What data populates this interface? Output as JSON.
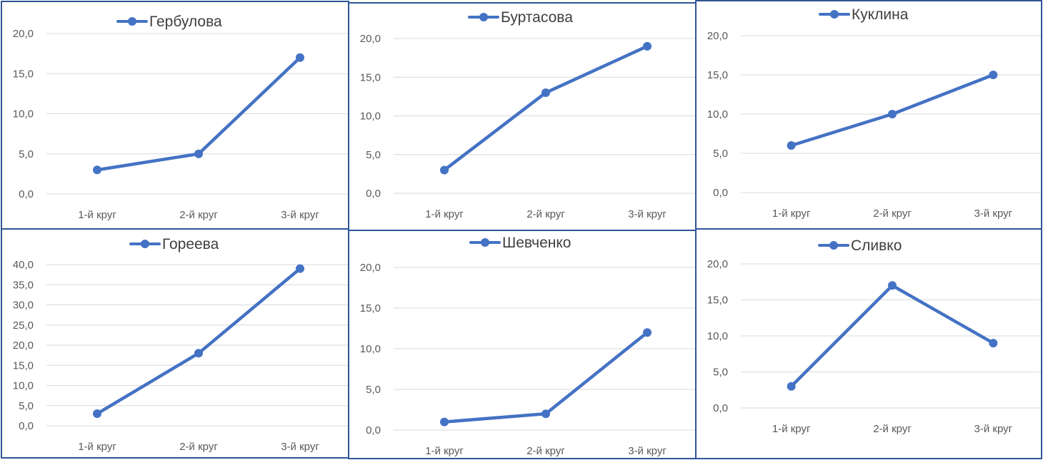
{
  "colors": {
    "series": "#4472C4",
    "grid": "#D9D9D9",
    "border": "#2F5597",
    "tick_text": "#595959"
  },
  "chart_data": [
    {
      "type": "line",
      "title": "Гербулова",
      "legend": "top",
      "categories": [
        "1-й круг",
        "2-й круг",
        "3-й круг"
      ],
      "series": [
        {
          "name": "Гербулова",
          "values": [
            3,
            5,
            17
          ]
        }
      ],
      "ylim": [
        0,
        20
      ],
      "ytick_step": 5,
      "ytick_labels": [
        "0,0",
        "5,0",
        "10,0",
        "15,0",
        "20,0"
      ]
    },
    {
      "type": "line",
      "title": "Буртасова",
      "legend": "top",
      "categories": [
        "1-й круг",
        "2-й круг",
        "3-й круг"
      ],
      "series": [
        {
          "name": "Буртасова",
          "values": [
            3,
            13,
            19
          ]
        }
      ],
      "ylim": [
        0,
        20
      ],
      "ytick_step": 5,
      "ytick_labels": [
        "0,0",
        "5,0",
        "10,0",
        "15,0",
        "20,0"
      ]
    },
    {
      "type": "line",
      "title": "Куклина",
      "legend": "top",
      "categories": [
        "1-й круг",
        "2-й круг",
        "3-й круг"
      ],
      "series": [
        {
          "name": "Куклина",
          "values": [
            6,
            10,
            15
          ]
        }
      ],
      "ylim": [
        0,
        20
      ],
      "ytick_step": 5,
      "ytick_labels": [
        "0,0",
        "5,0",
        "10,0",
        "15,0",
        "20,0"
      ]
    },
    {
      "type": "line",
      "title": "Гореева",
      "legend": "top",
      "categories": [
        "1-й круг",
        "2-й круг",
        "3-й круг"
      ],
      "series": [
        {
          "name": "Гореева",
          "values": [
            3,
            18,
            39
          ]
        }
      ],
      "ylim": [
        0,
        40
      ],
      "ytick_step": 5,
      "ytick_labels": [
        "0,0",
        "5,0",
        "10,0",
        "15,0",
        "20,0",
        "25,0",
        "30,0",
        "35,0",
        "40,0"
      ]
    },
    {
      "type": "line",
      "title": "Шевченко",
      "legend": "top",
      "categories": [
        "1-й круг",
        "2-й круг",
        "3-й круг"
      ],
      "series": [
        {
          "name": "Шевченко",
          "values": [
            1,
            2,
            12
          ]
        }
      ],
      "ylim": [
        0,
        20
      ],
      "ytick_step": 5,
      "ytick_labels": [
        "0,0",
        "5,0",
        "10,0",
        "15,0",
        "20,0"
      ]
    },
    {
      "type": "line",
      "title": "Сливко",
      "legend": "top",
      "categories": [
        "1-й круг",
        "2-й круг",
        "3-й круг"
      ],
      "series": [
        {
          "name": "Сливко",
          "values": [
            3,
            17,
            9
          ]
        }
      ],
      "ylim": [
        0,
        20
      ],
      "ytick_step": 5,
      "ytick_labels": [
        "0,0",
        "5,0",
        "10,0",
        "15,0",
        "20,0"
      ]
    }
  ]
}
